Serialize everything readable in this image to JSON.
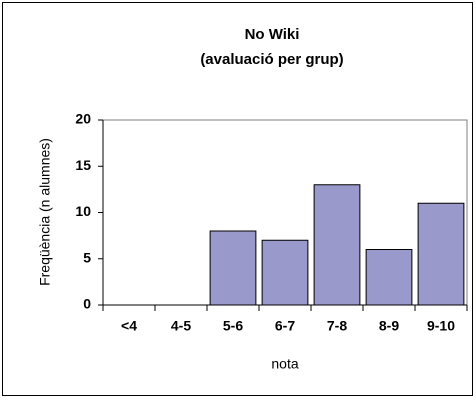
{
  "chart_data": {
    "type": "bar",
    "title": "No Wiki",
    "subtitle": "(avaluació per grup)",
    "categories": [
      "<4",
      "4-5",
      "5-6",
      "6-7",
      "7-8",
      "8-9",
      "9-10"
    ],
    "values": [
      0,
      0,
      8,
      7,
      13,
      6,
      11
    ],
    "color": "#9999cc",
    "ylim": [
      0,
      20
    ],
    "yticks": [
      0,
      5,
      10,
      15,
      20
    ],
    "x_label": "nota",
    "y_label": "Freqüència (n alumnes)"
  }
}
